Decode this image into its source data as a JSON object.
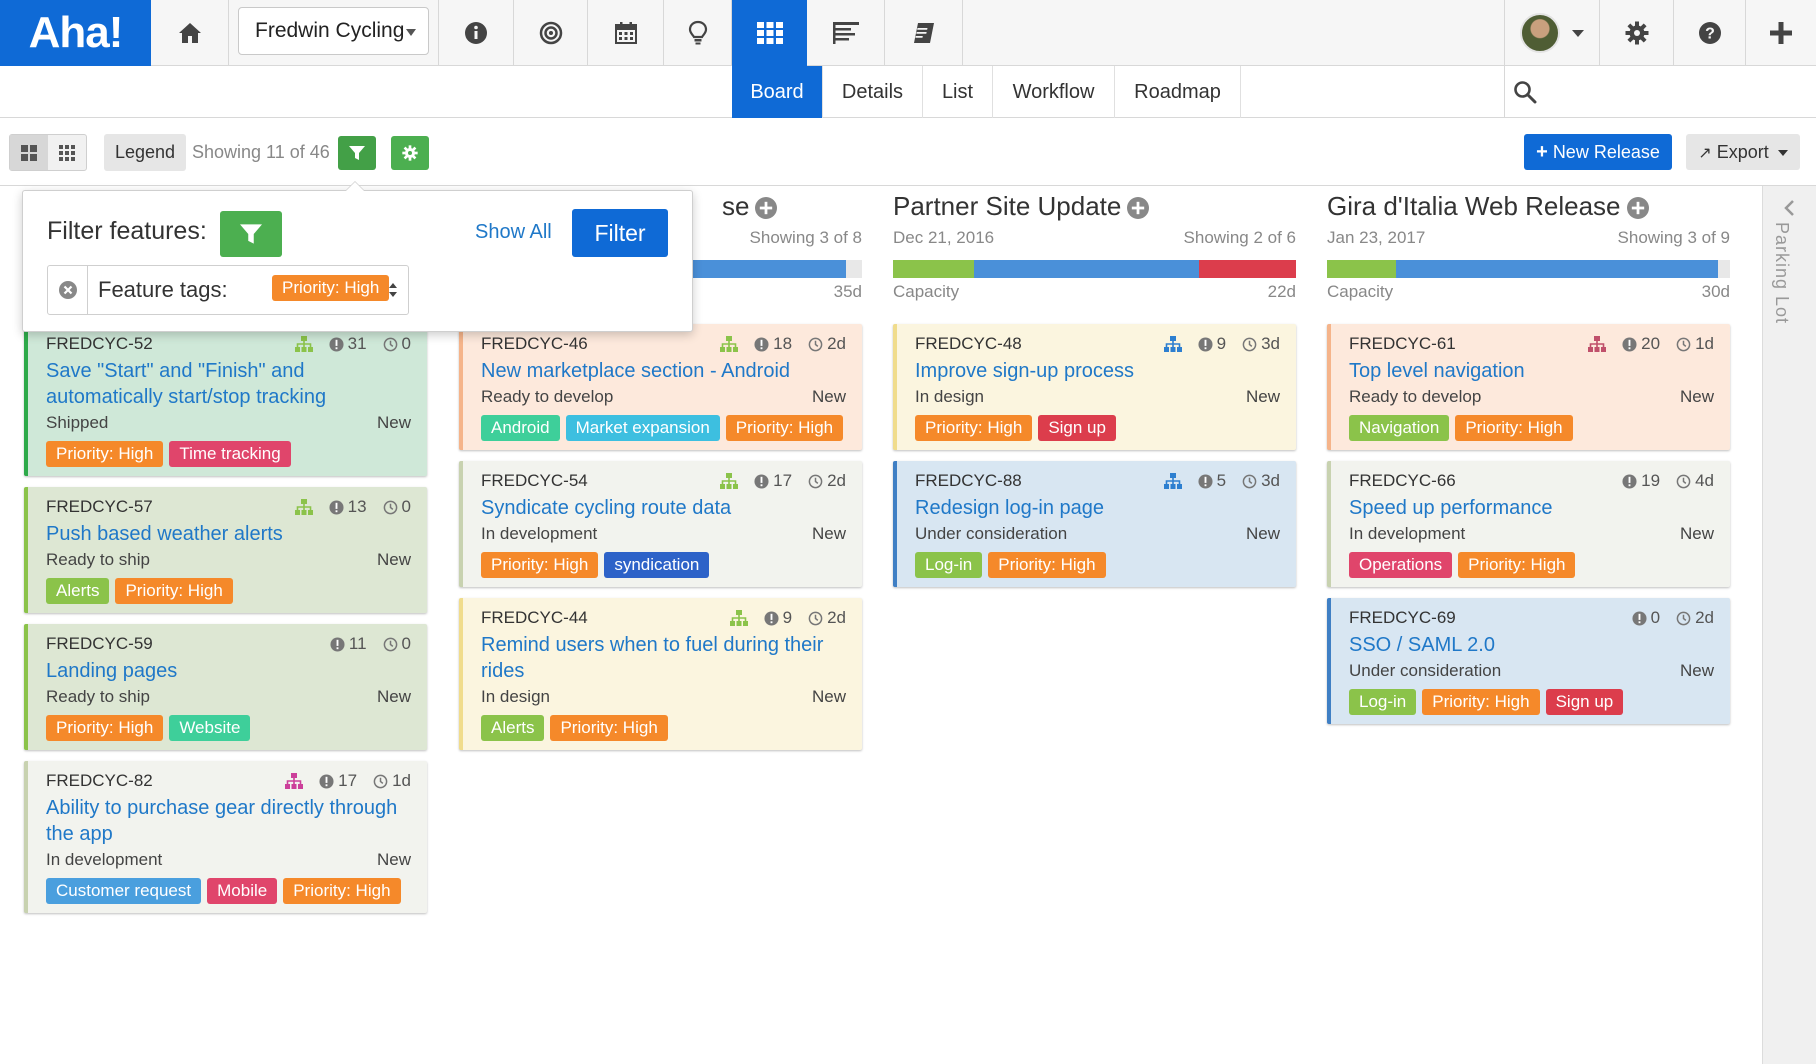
{
  "app": {
    "logo": "Aha!",
    "product": "Fredwin Cycling"
  },
  "nav": {
    "icons": [
      "home-icon",
      "info-icon",
      "target-icon",
      "calendar-icon",
      "lightbulb-icon",
      "grid-icon",
      "list-lines-icon",
      "notebook-icon"
    ],
    "active": "grid-icon"
  },
  "subtabs": [
    "Board",
    "Details",
    "List",
    "Workflow",
    "Roadmap"
  ],
  "toolbar": {
    "legend": "Legend",
    "showing": "Showing 11 of 46",
    "new_release": "New Release",
    "export": "Export"
  },
  "parking_lot": "Parking Lot",
  "filter": {
    "title": "Filter features:",
    "show_all": "Show All",
    "filter_btn": "Filter",
    "field_label": "Feature tags:",
    "selected_tag": "Priority: High"
  },
  "colors": {
    "primary": "#0f6ad6",
    "green": "#4caf50",
    "tag_orange": "#f5892a",
    "tag_pink": "#e0456b",
    "tag_lime": "#8bc34a",
    "tag_teal": "#3ecf9a",
    "tag_cyan": "#3dbfe0",
    "tag_blue": "#4a9fde",
    "tag_navy": "#2d62c8",
    "tag_red": "#dc3d4c"
  },
  "columns": [
    {
      "title": "",
      "date": "",
      "showing": "",
      "capacity_label": "",
      "capacity_value": "",
      "capacity": [],
      "cards": [
        {
          "id": "FREDCYC-52",
          "hier_color": "#8bc34a",
          "count": "31",
          "time": "0",
          "title": "Save \"Start\" and \"Finish\" and automatically start/stop tracking",
          "status": "Shipped",
          "state": "New",
          "bg": "#cfe8d8",
          "border": "#2eaa4a",
          "tags": [
            [
              "Priority: High",
              "#f5892a"
            ],
            [
              "Time tracking",
              "#e0456b"
            ]
          ]
        },
        {
          "id": "FREDCYC-57",
          "hier_color": "#8bc34a",
          "count": "13",
          "time": "0",
          "title": "Push based weather alerts",
          "status": "Ready to ship",
          "state": "New",
          "bg": "#dde7d3",
          "border": "#8bc34a",
          "tags": [
            [
              "Alerts",
              "#8bc34a"
            ],
            [
              "Priority: High",
              "#f5892a"
            ]
          ]
        },
        {
          "id": "FREDCYC-59",
          "hier_color": "",
          "count": "11",
          "time": "0",
          "title": "Landing pages",
          "status": "Ready to ship",
          "state": "New",
          "bg": "#dde7d3",
          "border": "#8bc34a",
          "tags": [
            [
              "Priority: High",
              "#f5892a"
            ],
            [
              "Website",
              "#3ecf9a"
            ]
          ]
        },
        {
          "id": "FREDCYC-82",
          "hier_color": "#cc3f9a",
          "count": "17",
          "time": "1d",
          "title": "Ability to purchase gear directly through the app",
          "status": "In development",
          "state": "New",
          "bg": "#f2f3ee",
          "border": "#c8d2b0",
          "tags": [
            [
              "Customer request",
              "#4a9fde"
            ],
            [
              "Mobile",
              "#e0456b"
            ],
            [
              "Priority: High",
              "#f5892a"
            ]
          ]
        }
      ]
    },
    {
      "title": "se",
      "date": "",
      "showing": "Showing 3 of 8",
      "capacity_label": "",
      "capacity_value": "35d",
      "capacity": [
        [
          "#4a90d9",
          96
        ],
        [
          "#e8e8e8",
          4
        ]
      ],
      "cards": [
        {
          "id": "FREDCYC-46",
          "hier_color": "#8bc34a",
          "count": "18",
          "time": "2d",
          "title": "New marketplace section - Android",
          "status": "Ready to develop",
          "state": "New",
          "bg": "#fde9dc",
          "border": "#f5b48a",
          "tags": [
            [
              "Android",
              "#3ecf9a"
            ],
            [
              "Market expansion",
              "#3dbfe0"
            ],
            [
              "Priority: High",
              "#f5892a"
            ]
          ]
        },
        {
          "id": "FREDCYC-54",
          "hier_color": "#8bc34a",
          "count": "17",
          "time": "2d",
          "title": "Syndicate cycling route data",
          "status": "In development",
          "state": "New",
          "bg": "#f2f3ee",
          "border": "#c8d2b0",
          "tags": [
            [
              "Priority: High",
              "#f5892a"
            ],
            [
              "syndication",
              "#2d62c8"
            ]
          ]
        },
        {
          "id": "FREDCYC-44",
          "hier_color": "#8bc34a",
          "count": "9",
          "time": "2d",
          "title": "Remind users when to fuel during their rides",
          "status": "In design",
          "state": "New",
          "bg": "#fbf5df",
          "border": "#f0dc8c",
          "tags": [
            [
              "Alerts",
              "#8bc34a"
            ],
            [
              "Priority: High",
              "#f5892a"
            ]
          ]
        }
      ]
    },
    {
      "title": "Partner Site Update",
      "date": "Dec 21, 2016",
      "showing": "Showing 2 of 6",
      "capacity_label": "Capacity",
      "capacity_value": "22d",
      "capacity": [
        [
          "#8bc34a",
          20
        ],
        [
          "#4a90d9",
          56
        ],
        [
          "#dc3d4c",
          24
        ]
      ],
      "cards": [
        {
          "id": "FREDCYC-48",
          "hier_color": "#2d7fd0",
          "count": "9",
          "time": "3d",
          "title": "Improve sign-up process",
          "status": "In design",
          "state": "New",
          "bg": "#fbf5df",
          "border": "#f0dc8c",
          "tags": [
            [
              "Priority: High",
              "#f5892a"
            ],
            [
              "Sign up",
              "#dc3d4c"
            ]
          ]
        },
        {
          "id": "FREDCYC-88",
          "hier_color": "#2d7fd0",
          "count": "5",
          "time": "3d",
          "title": "Redesign log-in page",
          "status": "Under consideration",
          "state": "New",
          "bg": "#d8e6f2",
          "border": "#3f7fc4",
          "tags": [
            [
              "Log-in",
              "#8bc34a"
            ],
            [
              "Priority: High",
              "#f5892a"
            ]
          ]
        }
      ]
    },
    {
      "title": "Gira d'Italia Web Release",
      "date": "Jan 23, 2017",
      "showing": "Showing 3 of 9",
      "capacity_label": "Capacity",
      "capacity_value": "30d",
      "capacity": [
        [
          "#8bc34a",
          17
        ],
        [
          "#4a90d9",
          80
        ],
        [
          "#e8e8e8",
          3
        ]
      ],
      "cards": [
        {
          "id": "FREDCYC-61",
          "hier_color": "#c0506b",
          "count": "20",
          "time": "1d",
          "title": "Top level navigation",
          "status": "Ready to develop",
          "state": "New",
          "bg": "#fde9dc",
          "border": "#f5b48a",
          "tags": [
            [
              "Navigation",
              "#8bc34a"
            ],
            [
              "Priority: High",
              "#f5892a"
            ]
          ]
        },
        {
          "id": "FREDCYC-66",
          "hier_color": "",
          "count": "19",
          "time": "4d",
          "title": "Speed up performance",
          "status": "In development",
          "state": "New",
          "bg": "#f2f3ee",
          "border": "#c8d2b0",
          "tags": [
            [
              "Operations",
              "#e0456b"
            ],
            [
              "Priority: High",
              "#f5892a"
            ]
          ]
        },
        {
          "id": "FREDCYC-69",
          "hier_color": "",
          "count": "0",
          "time": "2d",
          "title": "SSO / SAML 2.0",
          "status": "Under consideration",
          "state": "New",
          "bg": "#d8e6f2",
          "border": "#3f7fc4",
          "tags": [
            [
              "Log-in",
              "#8bc34a"
            ],
            [
              "Priority: High",
              "#f5892a"
            ],
            [
              "Sign up",
              "#dc3d4c"
            ]
          ]
        }
      ]
    }
  ]
}
